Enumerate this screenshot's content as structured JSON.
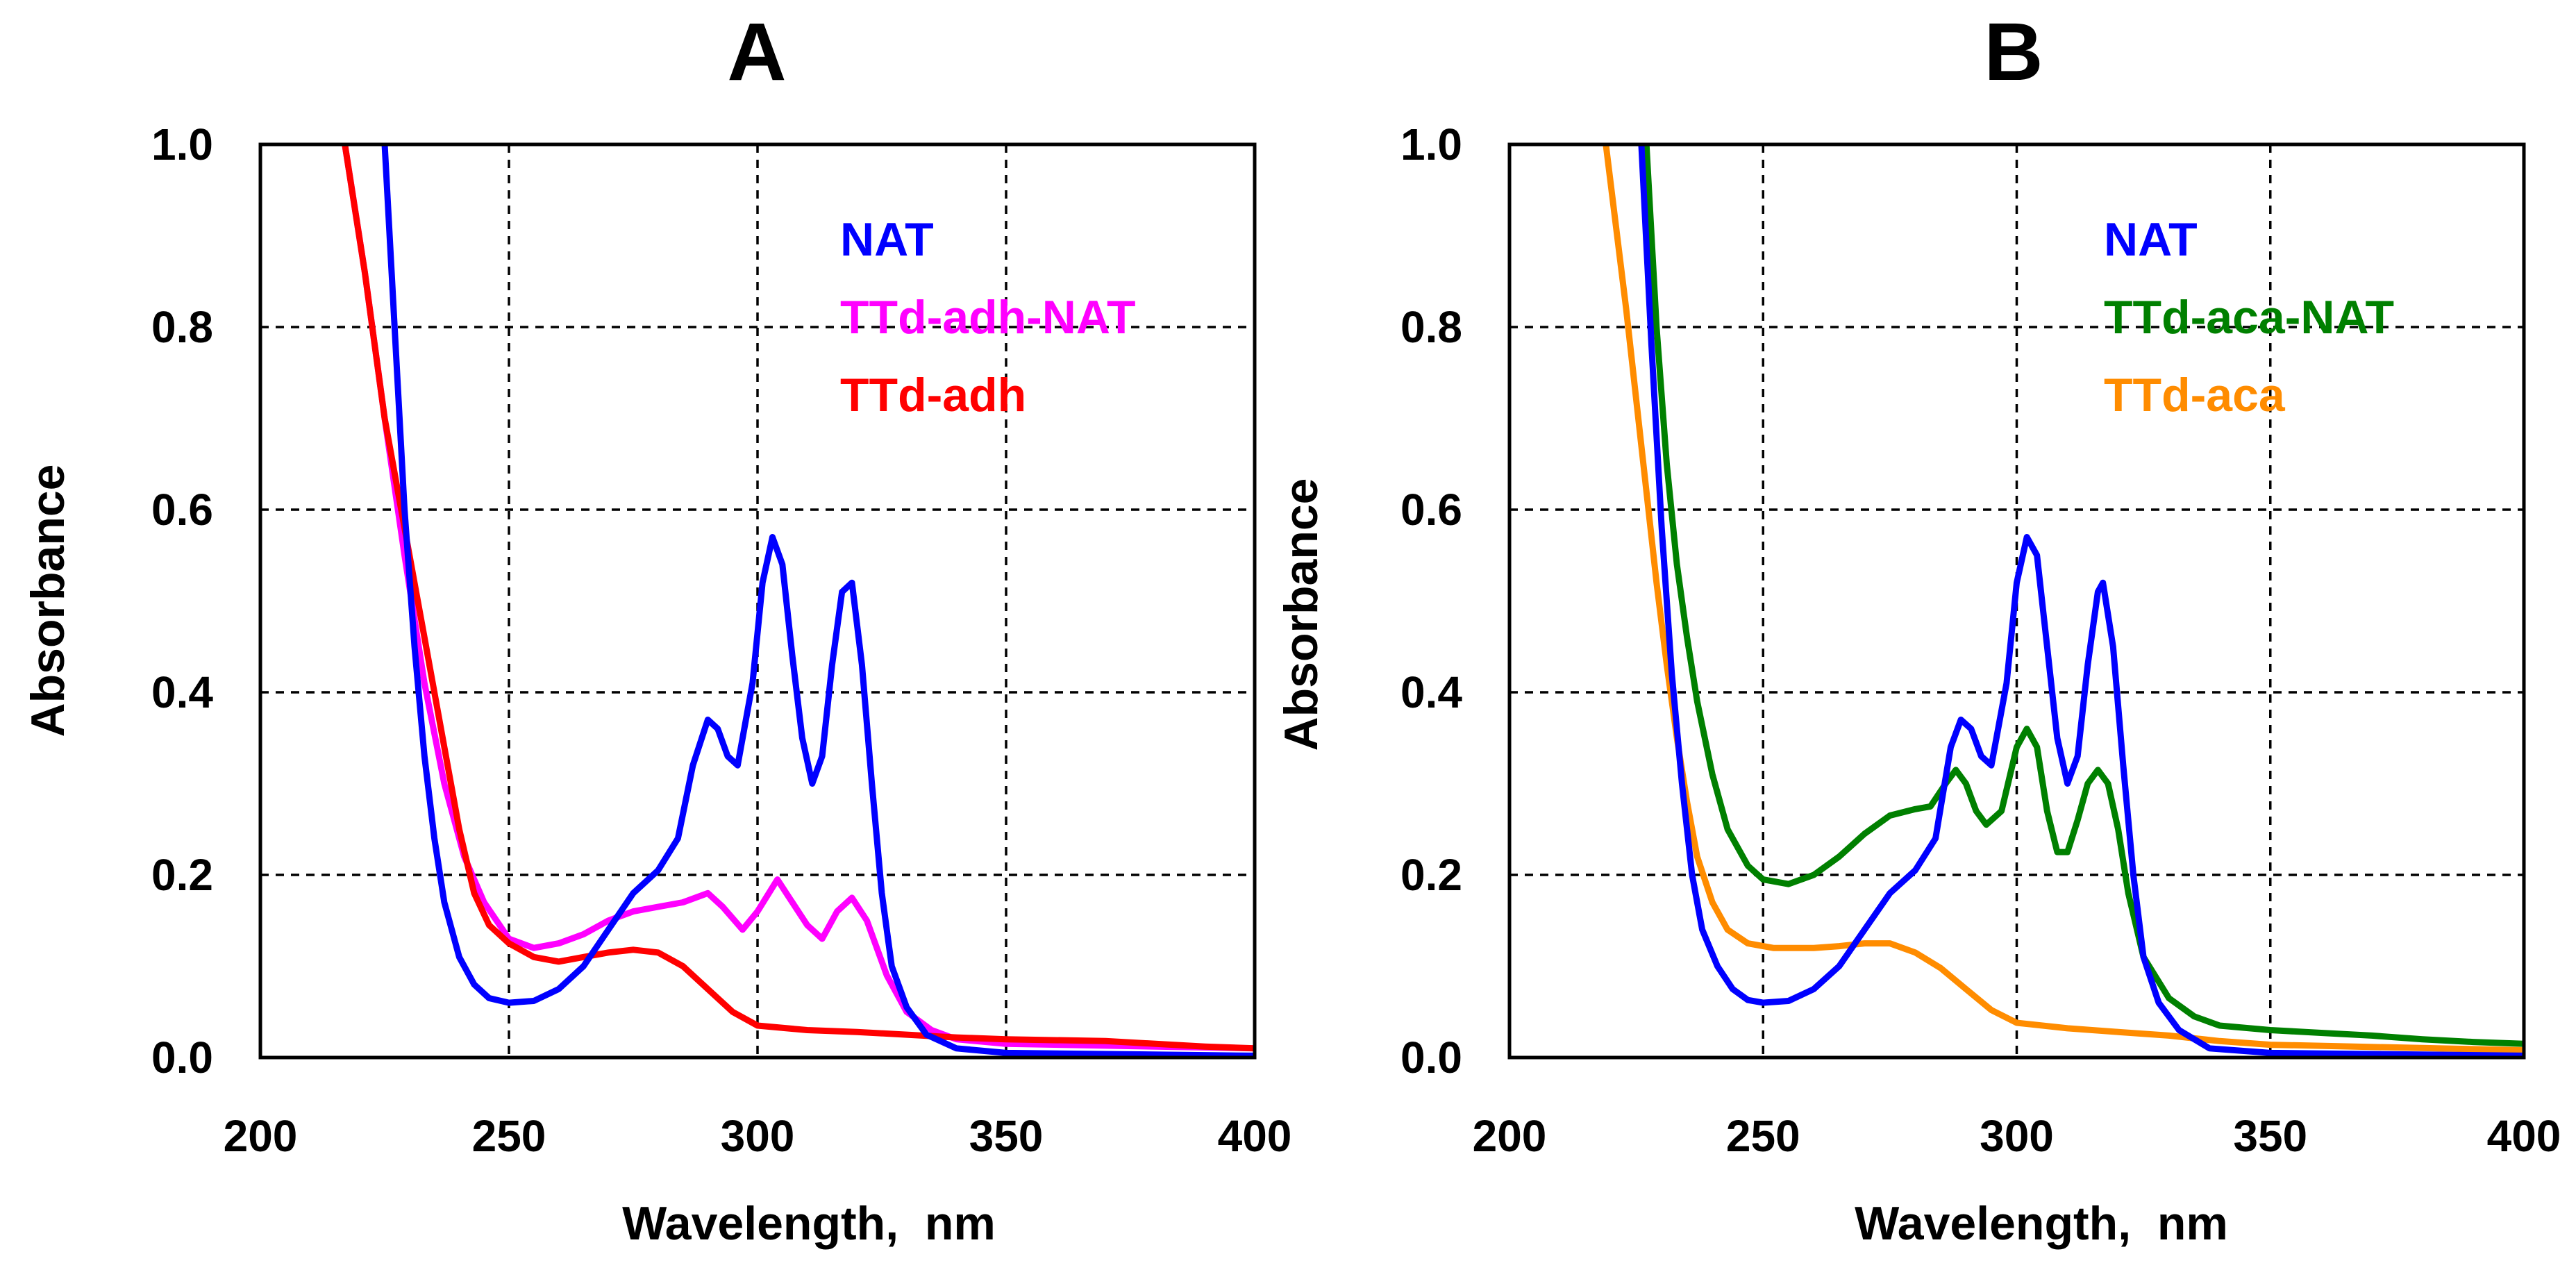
{
  "chart_data": [
    {
      "type": "line",
      "title": "A",
      "xlabel": "Wavelength,  nm",
      "ylabel": "Absorbance",
      "xlim": [
        200,
        400
      ],
      "ylim": [
        0,
        1.0
      ],
      "xticks": [
        200,
        250,
        300,
        350,
        400
      ],
      "xtick_labels": [
        "200",
        "250",
        "300",
        "350",
        "400"
      ],
      "yticks": [
        0,
        0.2,
        0.4,
        0.6,
        0.8,
        1.0
      ],
      "ytick_labels": [
        "0.0",
        "0.2",
        "0.4",
        "0.6",
        "0.8",
        "1.0"
      ],
      "grid": true,
      "legend_position": "top-right",
      "series": [
        {
          "name": "TTd-adh-NAT",
          "color": "#ff00ff",
          "points": [
            [
              217,
              1.0
            ],
            [
              221,
              0.86
            ],
            [
              225,
              0.7
            ],
            [
              229,
              0.55
            ],
            [
              233,
              0.41
            ],
            [
              237,
              0.3
            ],
            [
              241,
              0.22
            ],
            [
              245,
              0.17
            ],
            [
              250,
              0.13
            ],
            [
              255,
              0.12
            ],
            [
              260,
              0.125
            ],
            [
              265,
              0.135
            ],
            [
              270,
              0.15
            ],
            [
              275,
              0.16
            ],
            [
              280,
              0.165
            ],
            [
              285,
              0.17
            ],
            [
              290,
              0.18
            ],
            [
              293,
              0.165
            ],
            [
              297,
              0.14
            ],
            [
              300,
              0.16
            ],
            [
              304,
              0.195
            ],
            [
              307,
              0.17
            ],
            [
              310,
              0.145
            ],
            [
              313,
              0.13
            ],
            [
              316,
              0.16
            ],
            [
              319,
              0.175
            ],
            [
              322,
              0.15
            ],
            [
              326,
              0.09
            ],
            [
              330,
              0.05
            ],
            [
              335,
              0.03
            ],
            [
              340,
              0.02
            ],
            [
              350,
              0.015
            ],
            [
              400,
              0.01
            ]
          ]
        },
        {
          "name": "TTd-adh",
          "color": "#ff0000",
          "points": [
            [
              217,
              1.0
            ],
            [
              221,
              0.86
            ],
            [
              225,
              0.7
            ],
            [
              229,
              0.58
            ],
            [
              233,
              0.46
            ],
            [
              237,
              0.34
            ],
            [
              240,
              0.25
            ],
            [
              243,
              0.18
            ],
            [
              246,
              0.145
            ],
            [
              250,
              0.125
            ],
            [
              255,
              0.11
            ],
            [
              260,
              0.105
            ],
            [
              265,
              0.11
            ],
            [
              270,
              0.115
            ],
            [
              275,
              0.118
            ],
            [
              280,
              0.115
            ],
            [
              285,
              0.1
            ],
            [
              290,
              0.075
            ],
            [
              295,
              0.05
            ],
            [
              300,
              0.035
            ],
            [
              310,
              0.03
            ],
            [
              320,
              0.028
            ],
            [
              330,
              0.025
            ],
            [
              340,
              0.022
            ],
            [
              350,
              0.02
            ],
            [
              370,
              0.018
            ],
            [
              390,
              0.012
            ],
            [
              400,
              0.01
            ]
          ]
        },
        {
          "name": "NAT",
          "color": "#0000ff",
          "points": [
            [
              225,
              1.0
            ],
            [
              227,
              0.8
            ],
            [
              229,
              0.6
            ],
            [
              231,
              0.45
            ],
            [
              233,
              0.33
            ],
            [
              235,
              0.24
            ],
            [
              237,
              0.17
            ],
            [
              240,
              0.11
            ],
            [
              243,
              0.08
            ],
            [
              246,
              0.065
            ],
            [
              250,
              0.06
            ],
            [
              255,
              0.062
            ],
            [
              260,
              0.075
            ],
            [
              265,
              0.1
            ],
            [
              270,
              0.14
            ],
            [
              275,
              0.18
            ],
            [
              280,
              0.205
            ],
            [
              284,
              0.24
            ],
            [
              287,
              0.32
            ],
            [
              290,
              0.37
            ],
            [
              292,
              0.36
            ],
            [
              294,
              0.33
            ],
            [
              296,
              0.32
            ],
            [
              299,
              0.41
            ],
            [
              301,
              0.52
            ],
            [
              303,
              0.57
            ],
            [
              305,
              0.54
            ],
            [
              307,
              0.44
            ],
            [
              309,
              0.35
            ],
            [
              311,
              0.3
            ],
            [
              313,
              0.33
            ],
            [
              315,
              0.43
            ],
            [
              317,
              0.51
            ],
            [
              319,
              0.52
            ],
            [
              321,
              0.43
            ],
            [
              323,
              0.3
            ],
            [
              325,
              0.18
            ],
            [
              327,
              0.1
            ],
            [
              330,
              0.055
            ],
            [
              334,
              0.025
            ],
            [
              340,
              0.01
            ],
            [
              350,
              0.005
            ],
            [
              400,
              0.002
            ]
          ]
        }
      ]
    },
    {
      "type": "line",
      "title": "B",
      "xlabel": "Wavelength,  nm",
      "ylabel": "Absorbance",
      "xlim": [
        200,
        400
      ],
      "ylim": [
        0,
        1.0
      ],
      "xticks": [
        200,
        250,
        300,
        350,
        400
      ],
      "xtick_labels": [
        "200",
        "250",
        "300",
        "350",
        "400"
      ],
      "yticks": [
        0,
        0.2,
        0.4,
        0.6,
        0.8,
        1.0
      ],
      "ytick_labels": [
        "0.0",
        "0.2",
        "0.4",
        "0.6",
        "0.8",
        "1.0"
      ],
      "grid": true,
      "legend_position": "top-right",
      "series": [
        {
          "name": "TTd-aca",
          "color": "#ff8c00",
          "points": [
            [
              219,
              1.0
            ],
            [
              221,
              0.91
            ],
            [
              223,
              0.82
            ],
            [
              225,
              0.72
            ],
            [
              227,
              0.62
            ],
            [
              229,
              0.52
            ],
            [
              231,
              0.43
            ],
            [
              233,
              0.35
            ],
            [
              235,
              0.28
            ],
            [
              237,
              0.22
            ],
            [
              240,
              0.17
            ],
            [
              243,
              0.14
            ],
            [
              247,
              0.125
            ],
            [
              252,
              0.12
            ],
            [
              260,
              0.12
            ],
            [
              265,
              0.122
            ],
            [
              270,
              0.125
            ],
            [
              275,
              0.125
            ],
            [
              280,
              0.115
            ],
            [
              285,
              0.098
            ],
            [
              290,
              0.075
            ],
            [
              295,
              0.052
            ],
            [
              300,
              0.038
            ],
            [
              310,
              0.032
            ],
            [
              320,
              0.028
            ],
            [
              330,
              0.024
            ],
            [
              340,
              0.018
            ],
            [
              350,
              0.014
            ],
            [
              400,
              0.008
            ]
          ]
        },
        {
          "name": "TTd-aca-NAT",
          "color": "#008000",
          "points": [
            [
              227,
              1.0
            ],
            [
              229,
              0.8
            ],
            [
              231,
              0.65
            ],
            [
              233,
              0.54
            ],
            [
              235,
              0.46
            ],
            [
              237,
              0.39
            ],
            [
              240,
              0.31
            ],
            [
              243,
              0.25
            ],
            [
              247,
              0.21
            ],
            [
              250,
              0.195
            ],
            [
              255,
              0.19
            ],
            [
              260,
              0.2
            ],
            [
              265,
              0.22
            ],
            [
              270,
              0.245
            ],
            [
              275,
              0.265
            ],
            [
              280,
              0.272
            ],
            [
              283,
              0.275
            ],
            [
              286,
              0.3
            ],
            [
              288,
              0.315
            ],
            [
              290,
              0.3
            ],
            [
              292,
              0.27
            ],
            [
              294,
              0.255
            ],
            [
              297,
              0.27
            ],
            [
              300,
              0.34
            ],
            [
              302,
              0.36
            ],
            [
              304,
              0.34
            ],
            [
              306,
              0.27
            ],
            [
              308,
              0.225
            ],
            [
              310,
              0.225
            ],
            [
              312,
              0.26
            ],
            [
              314,
              0.3
            ],
            [
              316,
              0.315
            ],
            [
              318,
              0.3
            ],
            [
              320,
              0.25
            ],
            [
              322,
              0.18
            ],
            [
              325,
              0.11
            ],
            [
              330,
              0.065
            ],
            [
              335,
              0.045
            ],
            [
              340,
              0.035
            ],
            [
              350,
              0.03
            ],
            [
              360,
              0.027
            ],
            [
              370,
              0.024
            ],
            [
              380,
              0.02
            ],
            [
              390,
              0.017
            ],
            [
              400,
              0.015
            ]
          ]
        },
        {
          "name": "NAT",
          "color": "#0000ff",
          "points": [
            [
              226,
              1.0
            ],
            [
              228,
              0.78
            ],
            [
              230,
              0.58
            ],
            [
              232,
              0.42
            ],
            [
              234,
              0.3
            ],
            [
              236,
              0.2
            ],
            [
              238,
              0.14
            ],
            [
              241,
              0.1
            ],
            [
              244,
              0.075
            ],
            [
              247,
              0.063
            ],
            [
              250,
              0.06
            ],
            [
              255,
              0.062
            ],
            [
              260,
              0.075
            ],
            [
              265,
              0.1
            ],
            [
              270,
              0.14
            ],
            [
              275,
              0.18
            ],
            [
              280,
              0.205
            ],
            [
              284,
              0.24
            ],
            [
              287,
              0.34
            ],
            [
              289,
              0.37
            ],
            [
              291,
              0.36
            ],
            [
              293,
              0.33
            ],
            [
              295,
              0.32
            ],
            [
              298,
              0.41
            ],
            [
              300,
              0.52
            ],
            [
              302,
              0.57
            ],
            [
              304,
              0.55
            ],
            [
              306,
              0.45
            ],
            [
              308,
              0.35
            ],
            [
              310,
              0.3
            ],
            [
              312,
              0.33
            ],
            [
              314,
              0.43
            ],
            [
              316,
              0.51
            ],
            [
              317,
              0.52
            ],
            [
              319,
              0.45
            ],
            [
              321,
              0.32
            ],
            [
              323,
              0.2
            ],
            [
              325,
              0.11
            ],
            [
              328,
              0.06
            ],
            [
              332,
              0.03
            ],
            [
              338,
              0.01
            ],
            [
              350,
              0.005
            ],
            [
              400,
              0.002
            ]
          ]
        }
      ]
    }
  ]
}
